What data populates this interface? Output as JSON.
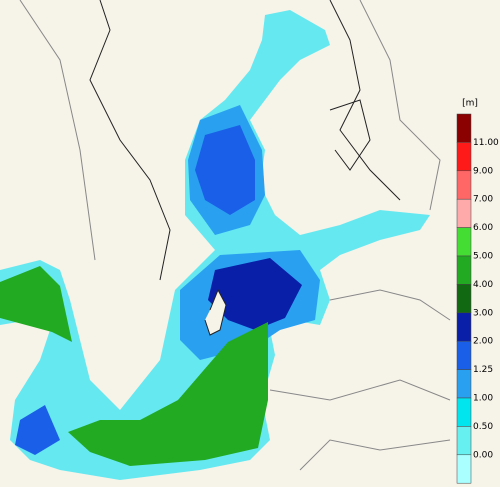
{
  "legend": {
    "unit": "[m]",
    "labels": [
      "11.00",
      "9.00",
      "7.00",
      "6.00",
      "5.00",
      "4.00",
      "3.00",
      "2.00",
      "1.25",
      "1.00",
      "0.50",
      "0.00"
    ],
    "colors": [
      "#8b0000",
      "#ff1a1a",
      "#ff6666",
      "#ffaaaa",
      "#44dd33",
      "#22aa22",
      "#116a11",
      "#0a1fa8",
      "#1a5fe8",
      "#2aa0f0",
      "#00e5ee",
      "#66f0f0",
      "#aaffff"
    ]
  }
}
